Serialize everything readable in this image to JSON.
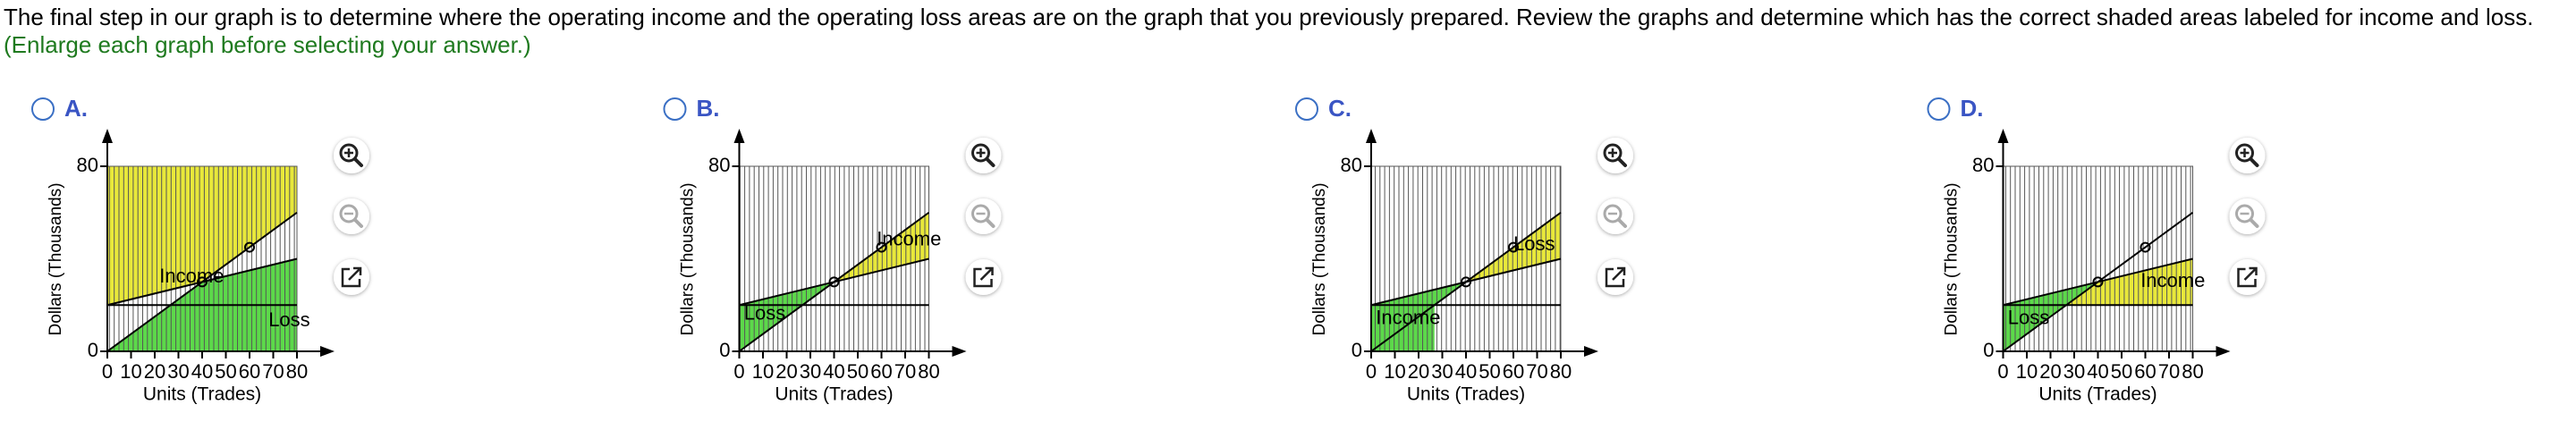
{
  "question": {
    "text": "The final step in our graph is to determine where the operating income and the operating loss areas are on the graph that you previously prepared. Review the graphs and determine which has the correct shaded areas labeled for income and loss.",
    "hint": "(Enlarge each graph before selecting your answer.)"
  },
  "options": [
    {
      "letter": "A.",
      "graph": {
        "xlim": [
          0,
          80
        ],
        "ylim": [
          0,
          80
        ],
        "xticks": [
          0,
          10,
          20,
          30,
          40,
          50,
          60,
          70,
          80
        ],
        "yticks": [
          0,
          80
        ],
        "x_label": "Units (Trades)",
        "y_label": "Dollars (Thousands)",
        "areas": [
          {
            "label": "Income",
            "color": "#e8e83a",
            "points": [
              [
                0,
                80
              ],
              [
                0,
                20
              ],
              [
                40,
                30
              ],
              [
                80,
                60
              ],
              [
                80,
                80
              ]
            ]
          },
          {
            "label": "Loss",
            "color": "#5cd94a",
            "points": [
              [
                0,
                0
              ],
              [
                40,
                30
              ],
              [
                80,
                40
              ],
              [
                80,
                0
              ]
            ]
          }
        ],
        "lines": [
          {
            "x": [
              0,
              80
            ],
            "y": [
              20,
              20
            ]
          },
          {
            "x": [
              0,
              80
            ],
            "y": [
              20,
              40
            ]
          },
          {
            "x": [
              0,
              80
            ],
            "y": [
              0,
              60
            ]
          }
        ],
        "points": {
          "x": [
            40,
            60
          ],
          "y": [
            30,
            45
          ]
        }
      }
    },
    {
      "letter": "B.",
      "graph": {
        "xlim": [
          0,
          80
        ],
        "ylim": [
          0,
          80
        ],
        "xticks": [
          0,
          10,
          20,
          30,
          40,
          50,
          60,
          70,
          80
        ],
        "yticks": [
          0,
          80
        ],
        "x_label": "Units (Trades)",
        "y_label": "Dollars (Thousands)",
        "areas": [
          {
            "label": "Loss",
            "color": "#5cd94a",
            "points": [
              [
                0,
                0
              ],
              [
                0,
                20
              ],
              [
                40,
                30
              ]
            ]
          },
          {
            "label": "Income",
            "color": "#e8e83a",
            "points": [
              [
                40,
                30
              ],
              [
                80,
                40
              ],
              [
                80,
                60
              ]
            ]
          }
        ],
        "lines": [
          {
            "x": [
              0,
              80
            ],
            "y": [
              20,
              20
            ]
          },
          {
            "x": [
              0,
              80
            ],
            "y": [
              20,
              40
            ]
          },
          {
            "x": [
              0,
              80
            ],
            "y": [
              0,
              60
            ]
          }
        ],
        "points": {
          "x": [
            40,
            60
          ],
          "y": [
            30,
            45
          ]
        }
      }
    },
    {
      "letter": "C.",
      "graph": {
        "xlim": [
          0,
          80
        ],
        "ylim": [
          0,
          80
        ],
        "xticks": [
          0,
          10,
          20,
          30,
          40,
          50,
          60,
          70,
          80
        ],
        "yticks": [
          0,
          80
        ],
        "x_label": "Units (Trades)",
        "y_label": "Dollars (Thousands)",
        "areas": [
          {
            "label": "Income",
            "color": "#5cd94a",
            "points": [
              [
                0,
                0
              ],
              [
                0,
                20
              ],
              [
                40,
                30
              ],
              [
                26.7,
                20
              ],
              [
                26.7,
                0
              ]
            ]
          },
          {
            "label": "Loss",
            "color": "#e8e83a",
            "points": [
              [
                40,
                30
              ],
              [
                80,
                40
              ],
              [
                80,
                60
              ]
            ]
          }
        ],
        "lines": [
          {
            "x": [
              0,
              80
            ],
            "y": [
              20,
              20
            ]
          },
          {
            "x": [
              0,
              80
            ],
            "y": [
              20,
              40
            ]
          },
          {
            "x": [
              0,
              80
            ],
            "y": [
              0,
              60
            ]
          }
        ],
        "points": {
          "x": [
            40,
            60
          ],
          "y": [
            30,
            45
          ]
        }
      }
    },
    {
      "letter": "D.",
      "graph": {
        "xlim": [
          0,
          80
        ],
        "ylim": [
          0,
          80
        ],
        "xticks": [
          0,
          10,
          20,
          30,
          40,
          50,
          60,
          70,
          80
        ],
        "yticks": [
          0,
          80
        ],
        "x_label": "Units (Trades)",
        "y_label": "Dollars (Thousands)",
        "areas": [
          {
            "label": "Loss",
            "color": "#5cd94a",
            "points": [
              [
                0,
                0
              ],
              [
                0,
                20
              ],
              [
                40,
                30
              ]
            ]
          },
          {
            "label": "Income",
            "color": "#e8e83a",
            "points": [
              [
                40,
                30
              ],
              [
                80,
                40
              ],
              [
                80,
                20
              ],
              [
                26.7,
                20
              ]
            ]
          }
        ],
        "lines": [
          {
            "x": [
              0,
              80
            ],
            "y": [
              20,
              20
            ]
          },
          {
            "x": [
              0,
              80
            ],
            "y": [
              20,
              40
            ]
          },
          {
            "x": [
              0,
              80
            ],
            "y": [
              0,
              60
            ]
          }
        ],
        "points": {
          "x": [
            40,
            60
          ],
          "y": [
            30,
            45
          ]
        }
      }
    }
  ]
}
